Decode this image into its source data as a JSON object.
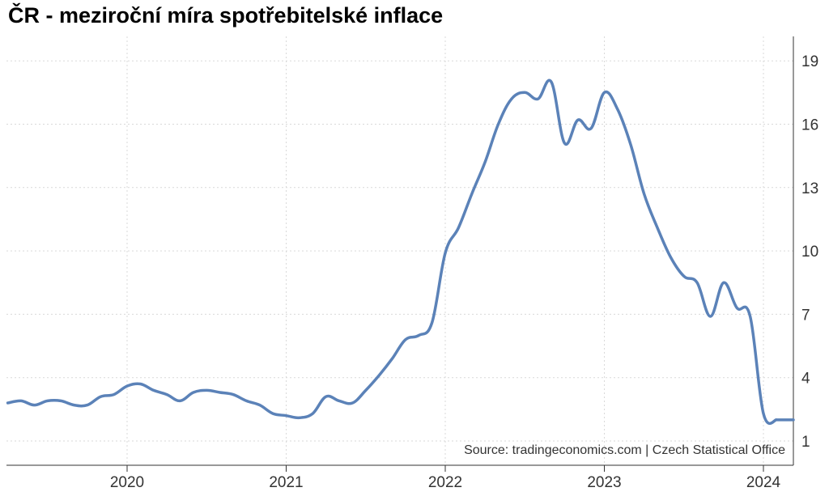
{
  "title": "ČR - meziroční míra spotřebitelské inflace",
  "source": "Source: tradingeconomics.com | Czech Statistical Office",
  "colors": {
    "line": "#5b82b8",
    "grid": "#d9d9d9",
    "axis": "#333333"
  },
  "chart_data": {
    "type": "line",
    "xlabel": "",
    "ylabel": "",
    "x_ticks": [
      "2020",
      "2021",
      "2022",
      "2023",
      "2024"
    ],
    "y_ticks": [
      1,
      4,
      7,
      10,
      13,
      16,
      19
    ],
    "ylim": [
      0,
      20
    ],
    "xlim": [
      "2019-04",
      "2024-02"
    ],
    "grid": true,
    "y_axis_side": "right",
    "series": [
      {
        "x": [
          "2019-04",
          "2019-05",
          "2019-06",
          "2019-07",
          "2019-08",
          "2019-09",
          "2019-10",
          "2019-11",
          "2019-12",
          "2020-01",
          "2020-02",
          "2020-03",
          "2020-04",
          "2020-05",
          "2020-06",
          "2020-07",
          "2020-08",
          "2020-09",
          "2020-10",
          "2020-11",
          "2020-12",
          "2021-01",
          "2021-02",
          "2021-03",
          "2021-04",
          "2021-05",
          "2021-06",
          "2021-07",
          "2021-08",
          "2021-09",
          "2021-10",
          "2021-11",
          "2021-12",
          "2022-01",
          "2022-02",
          "2022-03",
          "2022-04",
          "2022-05",
          "2022-06",
          "2022-07",
          "2022-08",
          "2022-09",
          "2022-10",
          "2022-11",
          "2022-12",
          "2023-01",
          "2023-02",
          "2023-03",
          "2023-04",
          "2023-05",
          "2023-06",
          "2023-07",
          "2023-08",
          "2023-09",
          "2023-10",
          "2023-11",
          "2023-12",
          "2024-01",
          "2024-02"
        ],
        "values": [
          2.8,
          2.9,
          2.7,
          2.9,
          2.9,
          2.7,
          2.7,
          3.1,
          3.2,
          3.6,
          3.7,
          3.4,
          3.2,
          2.9,
          3.3,
          3.4,
          3.3,
          3.2,
          2.9,
          2.7,
          2.3,
          2.2,
          2.1,
          2.3,
          3.1,
          2.9,
          2.8,
          3.4,
          4.1,
          4.9,
          5.8,
          6.0,
          6.6,
          9.9,
          11.1,
          12.7,
          14.2,
          16.0,
          17.2,
          17.5,
          17.2,
          18.0,
          15.1,
          16.2,
          15.8,
          17.5,
          16.7,
          15.0,
          12.7,
          11.1,
          9.7,
          8.8,
          8.5,
          6.9,
          8.5,
          7.3,
          6.9,
          2.3,
          2.0
        ]
      }
    ]
  }
}
